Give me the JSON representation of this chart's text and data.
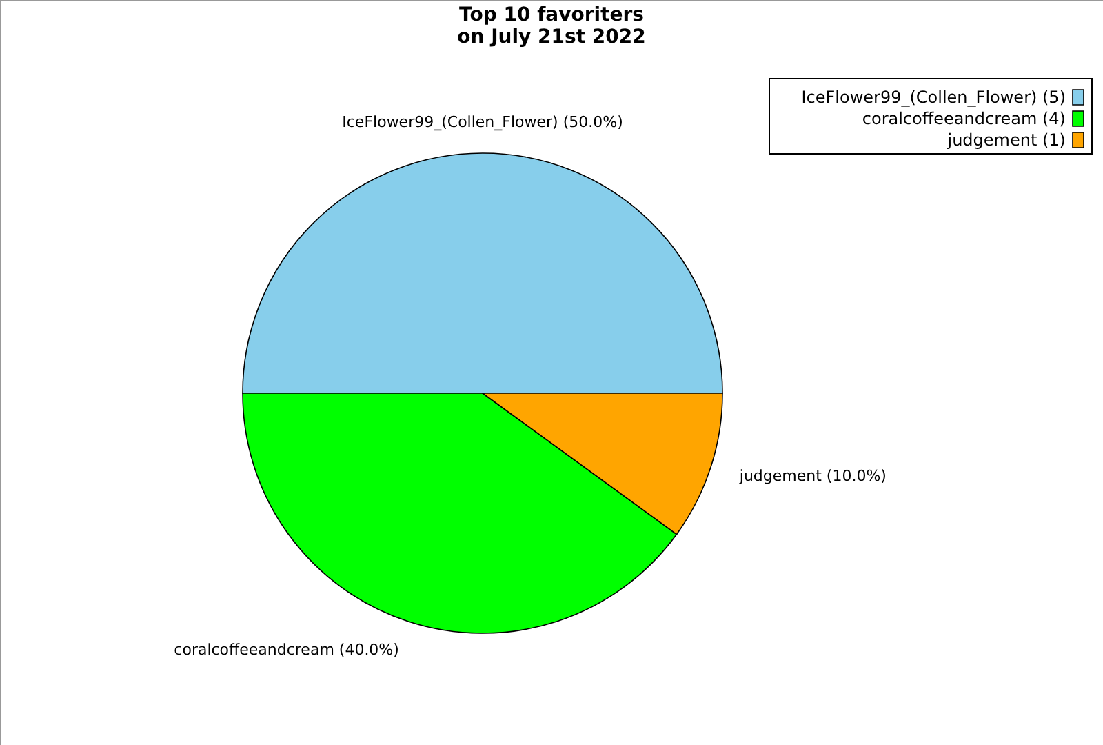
{
  "chart_data": {
    "type": "pie",
    "title": "Top 10 favoriters\non July 21st 2022",
    "categories": [
      "IceFlower99_(Collen_Flower) (5)",
      "coralcoffeeandcream (4)",
      "judgement (1)"
    ],
    "values": [
      50,
      40,
      10
    ],
    "value_labels": [
      "IceFlower99_(Collen_Flower) (50.0%)",
      "coralcoffeeandcream (40.0%)",
      "judgement (10.0%)"
    ],
    "colors": [
      "#87ceeb",
      "#00ff00",
      "#ffa500"
    ],
    "legend": "top right"
  }
}
